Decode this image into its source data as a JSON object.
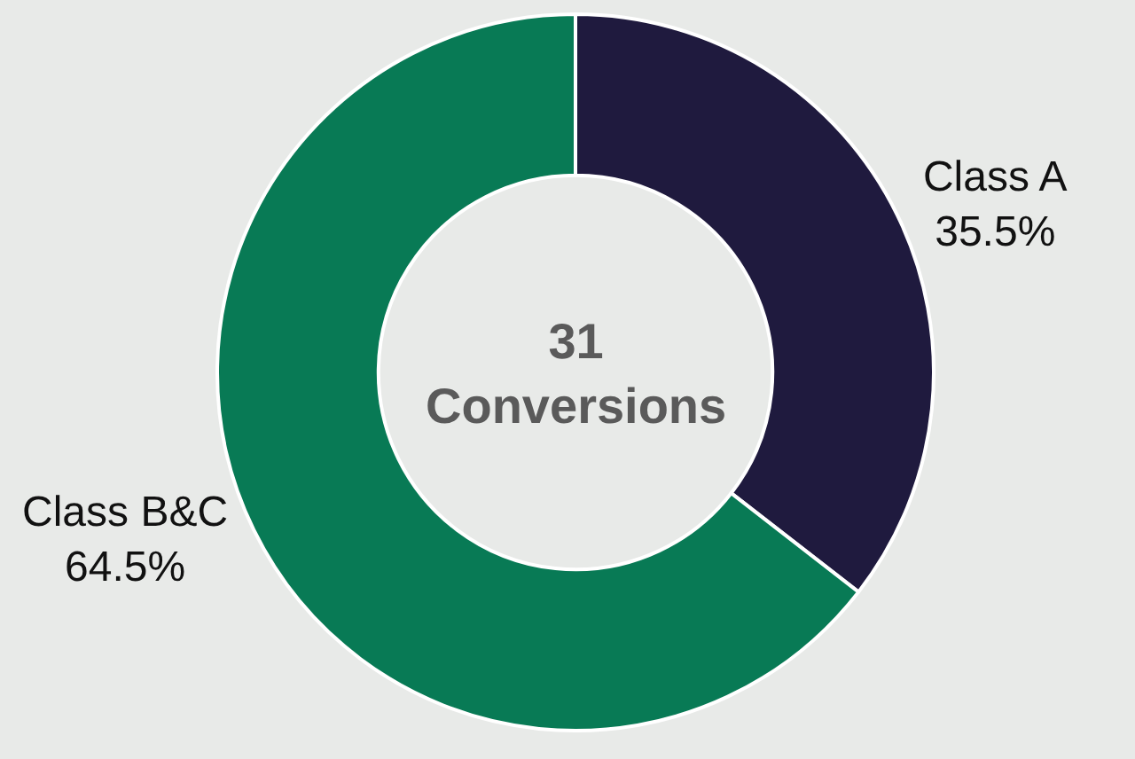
{
  "chart_data": {
    "type": "donut",
    "categories": [
      "Class A",
      "Class B&C"
    ],
    "values": [
      35.5,
      64.5
    ],
    "colors": [
      "#1f1a3e",
      "#087a55"
    ],
    "value_labels": [
      "35.5%",
      "64.5%"
    ],
    "annotations": [
      "31\nConversions"
    ],
    "legend": false
  }
}
